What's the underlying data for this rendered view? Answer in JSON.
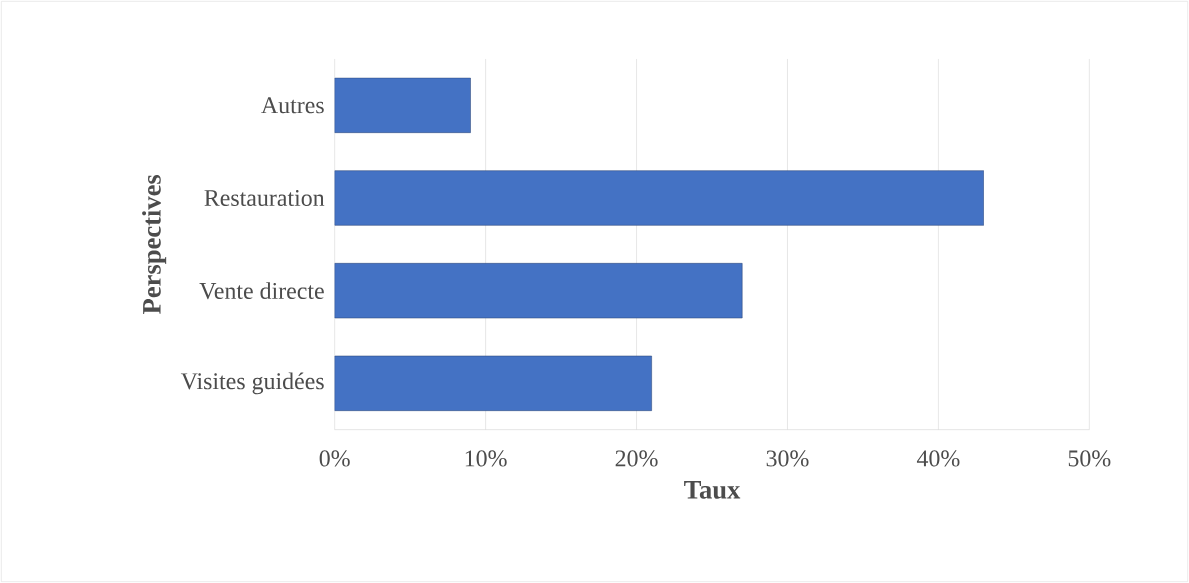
{
  "chart_data": {
    "type": "bar",
    "orientation": "horizontal",
    "xlabel": "Taux",
    "ylabel": "Perspectives",
    "categories": [
      "Autres",
      "Restauration",
      "Vente directe",
      "Visites guidées"
    ],
    "values": [
      9,
      43,
      27,
      21
    ],
    "color": "#4472c4",
    "xlim": [
      0,
      50
    ],
    "xticks": [
      {
        "value": 0,
        "label": "0%"
      },
      {
        "value": 10,
        "label": "10%"
      },
      {
        "value": 20,
        "label": "20%"
      },
      {
        "value": 30,
        "label": "30%"
      },
      {
        "value": 40,
        "label": "40%"
      },
      {
        "value": 50,
        "label": "50%"
      }
    ],
    "grid": "x"
  }
}
